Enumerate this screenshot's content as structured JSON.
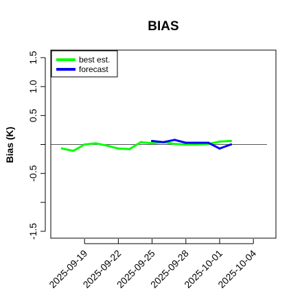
{
  "chart_data": {
    "type": "line",
    "title": "BIAS",
    "xlabel": "",
    "ylabel": "Bias (K)",
    "ylim": [
      -1.6,
      1.6
    ],
    "yticks": [
      -1.5,
      -1.0,
      -0.5,
      0.0,
      0.5,
      1.0,
      1.5
    ],
    "ytick_labels": [
      "-1.5",
      "",
      "-0.5",
      "",
      "0.5",
      "1.0",
      "1.5"
    ],
    "xlim": [
      "2025-09-16",
      "2025-10-06"
    ],
    "xticks": [
      "2025-09-19",
      "2025-09-22",
      "2025-09-25",
      "2025-09-28",
      "2025-10-01",
      "2025-10-04"
    ],
    "xtick_labels": [
      "2025-09-19",
      "2025-09-22",
      "2025-09-25",
      "2025-09-28",
      "2025-10-01",
      "2025-10-04"
    ],
    "xtick_colors": [
      "#000000",
      "#000000",
      "#228B22",
      "#000000",
      "#000000",
      "#000000"
    ],
    "reference_line": 0,
    "grid": false,
    "legend": "top-left",
    "series": [
      {
        "name": "best est.",
        "color": "#00ff00",
        "x": [
          "2025-09-17",
          "2025-09-18",
          "2025-09-19",
          "2025-09-20",
          "2025-09-21",
          "2025-09-22",
          "2025-09-23",
          "2025-09-24",
          "2025-09-25",
          "2025-09-26",
          "2025-09-27",
          "2025-09-28",
          "2025-09-29",
          "2025-09-30",
          "2025-10-01",
          "2025-10-02"
        ],
        "values": [
          -0.07,
          -0.11,
          0.0,
          0.02,
          -0.02,
          -0.07,
          -0.08,
          0.04,
          0.02,
          0.04,
          0.01,
          0.0,
          0.0,
          0.01,
          0.05,
          0.06
        ]
      },
      {
        "name": "forecast",
        "color": "#0000ff",
        "x": [
          "2025-09-25",
          "2025-09-26",
          "2025-09-27",
          "2025-09-28",
          "2025-09-29",
          "2025-09-30",
          "2025-10-01",
          "2025-10-02"
        ],
        "values": [
          0.06,
          0.04,
          0.08,
          0.03,
          0.03,
          0.03,
          -0.07,
          0.0
        ]
      }
    ]
  }
}
